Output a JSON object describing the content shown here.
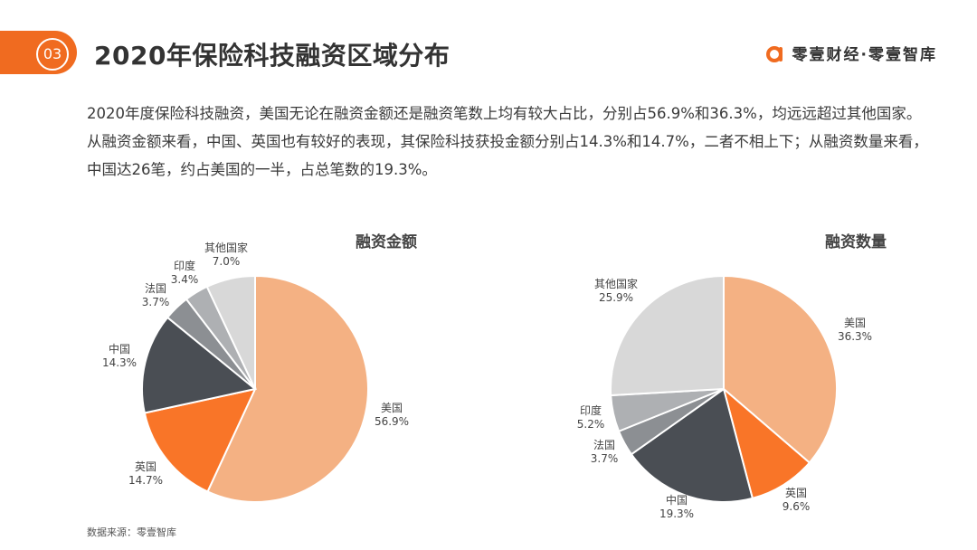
{
  "header": {
    "section_number": "03",
    "title": "2020年保险科技融资区域分布",
    "brand": "零壹财经·零壹智库"
  },
  "intro_text": "2020年度保险科技融资，美国无论在融资金额还是融资笔数上均有较大占比，分别占56.9%和36.3%，均远远超过其他国家。从融资金额来看，中国、英国也有较好的表现，其保险科技获投金额分别占14.3%和14.7%，二者不相上下；从融资数量来看，中国达26笔，约占美国的一半，占总笔数的19.3%。",
  "source_note": "数据来源：零壹智库",
  "colors": {
    "accent": "#f06b20",
    "us": "#f4b183",
    "uk": "#f97528",
    "cn": "#4a4e54",
    "fr": "#8c8f93",
    "in": "#aeb0b3",
    "other": "#d8d8d8"
  },
  "chart_data": [
    {
      "type": "pie",
      "title": "融资金额",
      "slices": [
        {
          "name": "美国",
          "value": 56.9,
          "label": "56.9%",
          "color": "#f4b183"
        },
        {
          "name": "英国",
          "value": 14.7,
          "label": "14.7%",
          "color": "#f97528"
        },
        {
          "name": "中国",
          "value": 14.3,
          "label": "14.3%",
          "color": "#4a4e54"
        },
        {
          "name": "法国",
          "value": 3.7,
          "label": "3.7%",
          "color": "#8c8f93"
        },
        {
          "name": "印度",
          "value": 3.4,
          "label": "3.4%",
          "color": "#aeb0b3"
        },
        {
          "name": "其他国家",
          "value": 7.0,
          "label": "7.0%",
          "color": "#d8d8d8"
        }
      ]
    },
    {
      "type": "pie",
      "title": "融资数量",
      "slices": [
        {
          "name": "美国",
          "value": 36.3,
          "label": "36.3%",
          "color": "#f4b183"
        },
        {
          "name": "英国",
          "value": 9.6,
          "label": "9.6%",
          "color": "#f97528"
        },
        {
          "name": "中国",
          "value": 19.3,
          "label": "19.3%",
          "color": "#4a4e54"
        },
        {
          "name": "法国",
          "value": 3.7,
          "label": "3.7%",
          "color": "#8c8f93"
        },
        {
          "name": "印度",
          "value": 5.2,
          "label": "5.2%",
          "color": "#aeb0b3"
        },
        {
          "name": "其他国家",
          "value": 25.9,
          "label": "25.9%",
          "color": "#d8d8d8"
        }
      ]
    }
  ]
}
